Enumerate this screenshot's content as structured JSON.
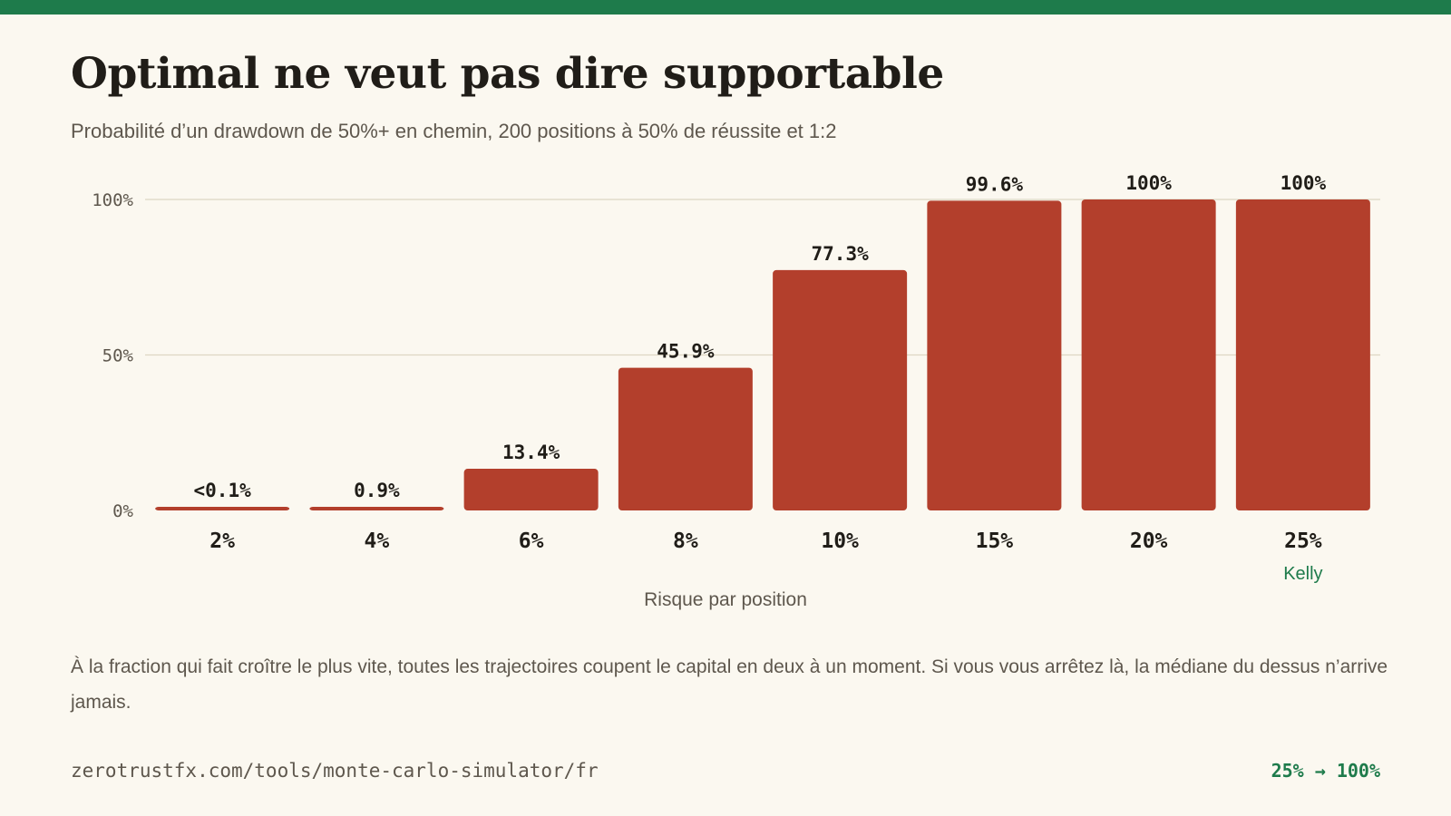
{
  "page": {
    "title": "Optimal ne veut pas dire supportable",
    "subtitle": "Probabilité d’un drawdown de 50%+ en chemin, 200 positions à 50% de réussite et 1:2",
    "note": "À la fraction qui fait croître le plus vite, toutes les trajectoires coupent le capital en deux à un moment. Si vous vous arrêtez là, la médiane du dessus n’arrive jamais.",
    "footer_url": "zerotrustfx.com/tools/monte-carlo-simulator/fr",
    "footer_badge": "25% → 100%"
  },
  "colors": {
    "accent": "#1e7b4b",
    "bar": "#b33f2c",
    "background": "#fbf8f0",
    "grid": "#ddd6c4",
    "text": "#201d18",
    "muted": "#5e574d"
  },
  "chart_data": {
    "type": "bar",
    "title": "Optimal ne veut pas dire supportable",
    "subtitle": "Probabilité d’un drawdown de 50%+ en chemin, 200 positions à 50% de réussite et 1:2",
    "xlabel": "Risque par position",
    "ylabel": "",
    "categories": [
      "2%",
      "4%",
      "6%",
      "8%",
      "10%",
      "15%",
      "20%",
      "25%"
    ],
    "values": [
      0.1,
      0.9,
      13.4,
      45.9,
      77.3,
      99.6,
      100,
      100
    ],
    "data_labels": [
      "<0.1%",
      "0.9%",
      "13.4%",
      "45.9%",
      "77.3%",
      "99.6%",
      "100%",
      "100%"
    ],
    "ylim": [
      0,
      100
    ],
    "yticks": [
      0,
      50,
      100
    ],
    "ytick_labels": [
      "0%",
      "50%",
      "100%"
    ],
    "grid": true,
    "legend": "none",
    "annotations": [
      {
        "category": "25%",
        "text": "Kelly"
      }
    ]
  }
}
